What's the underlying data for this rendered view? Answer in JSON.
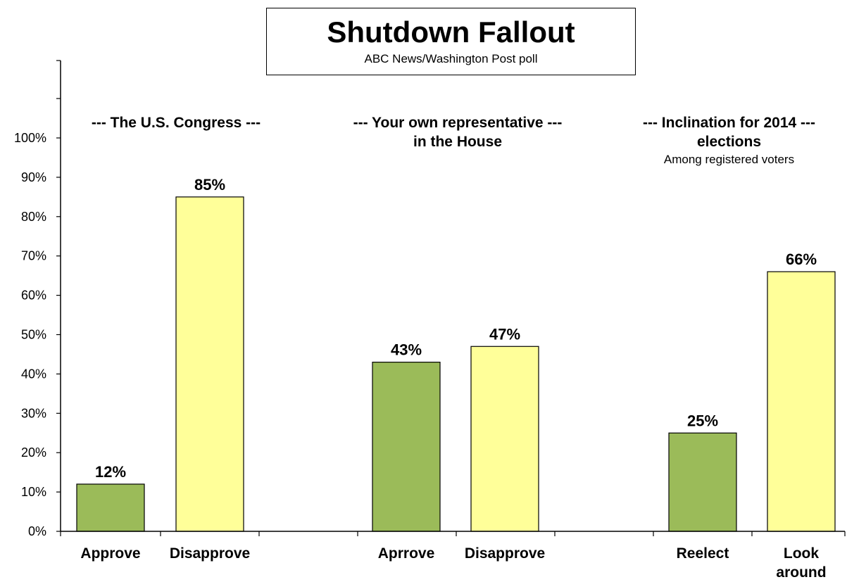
{
  "title": "Shutdown Fallout",
  "subtitle": "ABC News/Washington  Post poll",
  "groups": [
    {
      "heading": "--- The U.S. Congress ---",
      "heading_line2": "",
      "note": ""
    },
    {
      "heading": "--- Your own representative  ---",
      "heading_line2": "in the House",
      "note": ""
    },
    {
      "heading": "--- Inclination for 2014  ---",
      "heading_line2": "elections",
      "note": "Among registered voters"
    }
  ],
  "colors": {
    "green": "#9bbb59",
    "yellow": "#ffff99",
    "axis": "#000000"
  },
  "chart_data": {
    "type": "bar",
    "title": "Shutdown Fallout",
    "subtitle": "ABC News/Washington  Post poll",
    "ylim": [
      0,
      100
    ],
    "y_ticks": [
      "0%",
      "10%",
      "20%",
      "30%",
      "40%",
      "50%",
      "60%",
      "70%",
      "80%",
      "90%",
      "100%"
    ],
    "grid": false,
    "categories": [
      "Approve",
      "Disapprove",
      "Aprrove",
      "Disapprove",
      "Reelect",
      "Look around"
    ],
    "category_lines": [
      [
        "Approve"
      ],
      [
        "Disapprove"
      ],
      [
        "Aprrove"
      ],
      [
        "Disapprove"
      ],
      [
        "Reelect"
      ],
      [
        "Look",
        "around"
      ]
    ],
    "values": [
      12,
      85,
      43,
      47,
      25,
      66
    ],
    "value_labels": [
      "12%",
      "85%",
      "43%",
      "47%",
      "25%",
      "66%"
    ],
    "bar_colors": [
      "#9bbb59",
      "#ffff99",
      "#9bbb59",
      "#ffff99",
      "#9bbb59",
      "#ffff99"
    ]
  }
}
